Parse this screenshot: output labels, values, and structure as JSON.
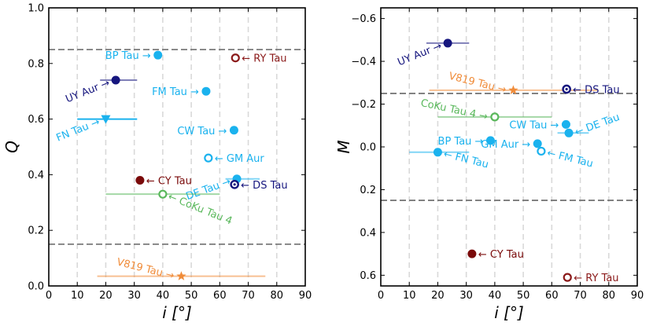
{
  "chart_data": [
    {
      "type": "scatter",
      "id": "left",
      "xlabel": "i [°]",
      "ylabel": "Q",
      "xlim": [
        0,
        90
      ],
      "ylim": [
        0,
        1
      ],
      "y_inverted": false,
      "xticks": [
        0,
        10,
        20,
        30,
        40,
        50,
        60,
        70,
        80,
        90
      ],
      "yticks": [
        0.0,
        0.2,
        0.4,
        0.6,
        0.8,
        1.0
      ],
      "ytick_labels": [
        "0.0",
        "0.2",
        "0.4",
        "0.6",
        "0.8",
        "1.0"
      ],
      "hlines": [
        0.85,
        0.15
      ],
      "points": [
        {
          "name": "BP Tau",
          "x": 38.3,
          "y": 0.83,
          "color": "#1ab2ee",
          "marker": "filled",
          "label": "BP Tau →",
          "label_side": "left",
          "label_rot": 0
        },
        {
          "name": "RY Tau",
          "x": 65.5,
          "y": 0.82,
          "color": "#8b1a1a",
          "marker": "open",
          "label": "← RY Tau",
          "label_side": "right",
          "label_rot": 0
        },
        {
          "name": "UY Aur",
          "x": 23.5,
          "y": 0.74,
          "xerr": [
            18,
            31
          ],
          "color": "#16167e",
          "marker": "filled",
          "label": "UY Aur →",
          "label_side": "left",
          "label_rot": -22
        },
        {
          "name": "FM Tau",
          "x": 55.2,
          "y": 0.7,
          "color": "#1ab2ee",
          "marker": "filled",
          "label": "FM Tau →",
          "label_side": "left",
          "label_rot": 0
        },
        {
          "name": "FN Tau",
          "x": 20.0,
          "y": 0.6,
          "xerr": [
            10,
            31
          ],
          "color": "#1ab2ee",
          "marker": "triangle",
          "label": "FN Tau →",
          "label_side": "left",
          "label_rot": -22
        },
        {
          "name": "CW Tau",
          "x": 65.0,
          "y": 0.56,
          "color": "#1ab2ee",
          "marker": "filled",
          "label": "CW Tau →",
          "label_side": "left",
          "label_rot": 0
        },
        {
          "name": "GM Aur",
          "x": 56.0,
          "y": 0.46,
          "color": "#1ab2ee",
          "marker": "open",
          "label": "← GM Aur",
          "label_side": "right",
          "label_rot": 0
        },
        {
          "name": "DE Tau",
          "x": 66.0,
          "y": 0.385,
          "xerr": [
            62,
            74
          ],
          "color": "#1ab2ee",
          "marker": "filled",
          "label": "DE Tau →",
          "label_side": "left",
          "label_rot": -20
        },
        {
          "name": "CY Tau",
          "x": 32.0,
          "y": 0.38,
          "color": "#7a0a0a",
          "marker": "filled",
          "label": "← CY Tau",
          "label_side": "right",
          "label_rot": 0
        },
        {
          "name": "DS Tau",
          "x": 65.2,
          "y": 0.365,
          "color": "#16167e",
          "marker": "dot",
          "label": "← DS Tau",
          "label_side": "right",
          "label_rot": 0
        },
        {
          "name": "CoKu Tau 4",
          "x": 40.0,
          "y": 0.33,
          "xerr": [
            20,
            60
          ],
          "color": "#5ab85c",
          "marker": "open",
          "label": "← CoKu Tau 4",
          "label_side": "right",
          "label_rot": 22
        },
        {
          "name": "V819 Tau",
          "x": 46.5,
          "y": 0.035,
          "xerr": [
            17,
            76
          ],
          "color": "#f08c3a",
          "marker": "star",
          "label": "V819 Tau →",
          "label_side": "left",
          "label_rot": 14
        }
      ]
    },
    {
      "type": "scatter",
      "id": "right",
      "xlabel": "i [°]",
      "ylabel": "M",
      "xlim": [
        0,
        90
      ],
      "ylim": [
        -0.65,
        0.65
      ],
      "y_inverted": true,
      "xticks": [
        0,
        10,
        20,
        30,
        40,
        50,
        60,
        70,
        80,
        90
      ],
      "yticks": [
        -0.6,
        -0.4,
        -0.2,
        0.0,
        0.2,
        0.4,
        0.6
      ],
      "ytick_labels": [
        "−0.6",
        "−0.4",
        "−0.2",
        "0.0",
        "0.2",
        "0.4",
        "0.6"
      ],
      "hlines": [
        -0.25,
        0.25
      ],
      "points": [
        {
          "name": "UY Aur",
          "x": 23.5,
          "y": -0.485,
          "xerr": [
            16,
            31
          ],
          "color": "#16167e",
          "marker": "filled",
          "label": "UY Aur →",
          "label_side": "left",
          "label_rot": -22
        },
        {
          "name": "V819 Tau",
          "x": 46.5,
          "y": -0.265,
          "xerr": [
            17,
            76
          ],
          "color": "#f08c3a",
          "marker": "star",
          "label": "V819 Tau →",
          "label_side": "left",
          "label_rot": 14
        },
        {
          "name": "DS Tau",
          "x": 65.2,
          "y": -0.27,
          "color": "#16167e",
          "marker": "dot",
          "label": "← DS Tau",
          "label_side": "right",
          "label_rot": 0
        },
        {
          "name": "CoKu Tau 4",
          "x": 40.0,
          "y": -0.14,
          "xerr": [
            20,
            60
          ],
          "color": "#5ab85c",
          "marker": "open",
          "label": "CoKu Tau 4 →",
          "label_side": "left",
          "label_rot": 12
        },
        {
          "name": "CW Tau",
          "x": 65.0,
          "y": -0.105,
          "color": "#1ab2ee",
          "marker": "filled",
          "label": "CW Tau →",
          "label_side": "left",
          "label_rot": 0
        },
        {
          "name": "DE Tau",
          "x": 66.0,
          "y": -0.065,
          "xerr": [
            62,
            73
          ],
          "color": "#1ab2ee",
          "marker": "filled",
          "label": "← DE Tau",
          "label_side": "right",
          "label_rot": -20
        },
        {
          "name": "BP Tau",
          "x": 38.5,
          "y": -0.03,
          "color": "#1ab2ee",
          "marker": "filled",
          "label": "BP Tau →",
          "label_side": "left",
          "label_rot": 0
        },
        {
          "name": "GM Aur",
          "x": 55.0,
          "y": -0.015,
          "color": "#1ab2ee",
          "marker": "filled",
          "label": "GM Aur →",
          "label_side": "left",
          "label_rot": 0
        },
        {
          "name": "FM Tau",
          "x": 56.3,
          "y": 0.02,
          "color": "#1ab2ee",
          "marker": "open",
          "label": "← FM Tau",
          "label_side": "right",
          "label_rot": 14
        },
        {
          "name": "FN Tau",
          "x": 20.0,
          "y": 0.025,
          "xerr": [
            10,
            31
          ],
          "color": "#1ab2ee",
          "marker": "filled",
          "label": "← FN Tau",
          "label_side": "right",
          "label_rot": 14
        },
        {
          "name": "CY Tau",
          "x": 32.0,
          "y": 0.5,
          "color": "#7a0a0a",
          "marker": "filled",
          "label": "← CY Tau",
          "label_side": "right",
          "label_rot": 0
        },
        {
          "name": "RY Tau",
          "x": 65.5,
          "y": 0.61,
          "color": "#8b1a1a",
          "marker": "open",
          "label": "← RY Tau",
          "label_side": "right",
          "label_rot": 0
        }
      ]
    }
  ]
}
